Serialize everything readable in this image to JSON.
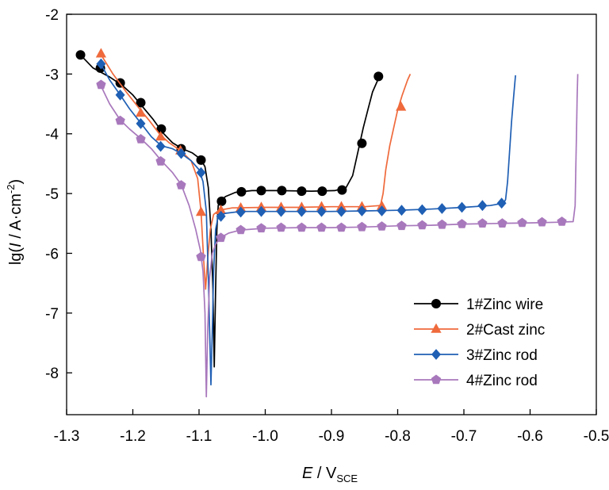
{
  "chart_data": {
    "type": "line",
    "xlabel_main": "E",
    "xlabel_unit": "V",
    "xlabel_sub": "SCE",
    "ylabel_main": "I",
    "ylabel_unit": "A·cm",
    "ylabel_sup": "-2",
    "xlim": [
      -1.3,
      -0.5
    ],
    "ylim": [
      -8.7,
      -2
    ],
    "x_ticks": [
      -1.3,
      -1.2,
      -1.1,
      -1.0,
      -0.9,
      -0.8,
      -0.7,
      -0.6,
      -0.5
    ],
    "x_tick_labels": [
      "-1.3",
      "-1.2",
      "-1.1",
      "-1.0",
      "-0.9",
      "-0.8",
      "-0.7",
      "-0.6",
      "-0.5"
    ],
    "y_ticks": [
      -2,
      -3,
      -4,
      -5,
      -6,
      -7,
      -8
    ],
    "y_tick_labels": [
      "-2",
      "-3",
      "-4",
      "-5",
      "-6",
      "-7",
      "-8"
    ],
    "grid": false,
    "legend_position": "bottom-right",
    "series": [
      {
        "name": "1#Zinc wire",
        "color": "#000000",
        "marker": "circle",
        "curve": [
          [
            -1.279,
            -2.68
          ],
          [
            -1.26,
            -2.9
          ],
          [
            -1.235,
            -3.05
          ],
          [
            -1.215,
            -3.2
          ],
          [
            -1.2,
            -3.35
          ],
          [
            -1.185,
            -3.55
          ],
          [
            -1.17,
            -3.75
          ],
          [
            -1.155,
            -3.98
          ],
          [
            -1.14,
            -4.15
          ],
          [
            -1.125,
            -4.25
          ],
          [
            -1.11,
            -4.32
          ],
          [
            -1.098,
            -4.42
          ],
          [
            -1.091,
            -4.55
          ],
          [
            -1.086,
            -4.9
          ],
          [
            -1.082,
            -5.6
          ],
          [
            -1.079,
            -6.6
          ],
          [
            -1.077,
            -7.9
          ],
          [
            -1.075,
            -6.6
          ],
          [
            -1.073,
            -5.6
          ],
          [
            -1.071,
            -5.2
          ],
          [
            -1.068,
            -5.12
          ],
          [
            -1.06,
            -5.05
          ],
          [
            -1.045,
            -4.98
          ],
          [
            -1.02,
            -4.95
          ],
          [
            -0.98,
            -4.95
          ],
          [
            -0.93,
            -4.96
          ],
          [
            -0.895,
            -4.95
          ],
          [
            -0.878,
            -4.9
          ],
          [
            -0.868,
            -4.7
          ],
          [
            -0.86,
            -4.3
          ],
          [
            -0.852,
            -3.9
          ],
          [
            -0.845,
            -3.6
          ],
          [
            -0.838,
            -3.3
          ],
          [
            -0.828,
            -3.05
          ]
        ],
        "markers": [
          [
            -1.279,
            -2.68
          ],
          [
            -1.249,
            -2.9
          ],
          [
            -1.219,
            -3.15
          ],
          [
            -1.188,
            -3.48
          ],
          [
            -1.157,
            -3.92
          ],
          [
            -1.127,
            -4.25
          ],
          [
            -1.097,
            -4.44
          ],
          [
            -1.066,
            -5.13
          ],
          [
            -1.036,
            -4.97
          ],
          [
            -1.006,
            -4.95
          ],
          [
            -0.975,
            -4.95
          ],
          [
            -0.945,
            -4.96
          ],
          [
            -0.914,
            -4.96
          ],
          [
            -0.884,
            -4.94
          ],
          [
            -0.854,
            -4.16
          ],
          [
            -0.829,
            -3.04
          ]
        ]
      },
      {
        "name": "2#Cast zinc",
        "color": "#ef6a3c",
        "marker": "triangle",
        "curve": [
          [
            -1.249,
            -2.66
          ],
          [
            -1.23,
            -3.0
          ],
          [
            -1.21,
            -3.3
          ],
          [
            -1.19,
            -3.58
          ],
          [
            -1.175,
            -3.78
          ],
          [
            -1.16,
            -4.0
          ],
          [
            -1.145,
            -4.15
          ],
          [
            -1.128,
            -4.28
          ],
          [
            -1.112,
            -4.45
          ],
          [
            -1.102,
            -4.75
          ],
          [
            -1.097,
            -5.3
          ],
          [
            -1.093,
            -6.1
          ],
          [
            -1.09,
            -6.6
          ],
          [
            -1.087,
            -6.1
          ],
          [
            -1.083,
            -5.6
          ],
          [
            -1.078,
            -5.35
          ],
          [
            -1.07,
            -5.28
          ],
          [
            -1.05,
            -5.24
          ],
          [
            -1.0,
            -5.23
          ],
          [
            -0.95,
            -5.23
          ],
          [
            -0.9,
            -5.22
          ],
          [
            -0.85,
            -5.22
          ],
          [
            -0.826,
            -5.2
          ],
          [
            -0.822,
            -5.0
          ],
          [
            -0.818,
            -4.6
          ],
          [
            -0.812,
            -4.2
          ],
          [
            -0.806,
            -3.9
          ],
          [
            -0.8,
            -3.6
          ],
          [
            -0.793,
            -3.35
          ],
          [
            -0.785,
            -3.1
          ],
          [
            -0.781,
            -3.0
          ]
        ],
        "markers": [
          [
            -1.248,
            -2.66
          ],
          [
            -1.188,
            -3.65
          ],
          [
            -1.158,
            -4.05
          ],
          [
            -1.128,
            -4.28
          ],
          [
            -1.097,
            -5.31
          ],
          [
            -1.067,
            -5.28
          ],
          [
            -1.037,
            -5.24
          ],
          [
            -1.006,
            -5.23
          ],
          [
            -0.976,
            -5.23
          ],
          [
            -0.945,
            -5.23
          ],
          [
            -0.915,
            -5.22
          ],
          [
            -0.885,
            -5.22
          ],
          [
            -0.854,
            -5.22
          ],
          [
            -0.824,
            -5.21
          ],
          [
            -0.795,
            -3.55
          ]
        ]
      },
      {
        "name": "3#Zinc rod",
        "color": "#1f5fb4",
        "marker": "diamond",
        "curve": [
          [
            -1.249,
            -2.82
          ],
          [
            -1.235,
            -3.1
          ],
          [
            -1.219,
            -3.35
          ],
          [
            -1.205,
            -3.58
          ],
          [
            -1.188,
            -3.82
          ],
          [
            -1.172,
            -4.05
          ],
          [
            -1.157,
            -4.2
          ],
          [
            -1.14,
            -4.25
          ],
          [
            -1.127,
            -4.33
          ],
          [
            -1.112,
            -4.45
          ],
          [
            -1.1,
            -4.6
          ],
          [
            -1.094,
            -4.8
          ],
          [
            -1.089,
            -5.3
          ],
          [
            -1.086,
            -6.4
          ],
          [
            -1.084,
            -7.3
          ],
          [
            -1.082,
            -8.2
          ],
          [
            -1.08,
            -7.3
          ],
          [
            -1.078,
            -6.3
          ],
          [
            -1.075,
            -5.6
          ],
          [
            -1.071,
            -5.38
          ],
          [
            -1.06,
            -5.33
          ],
          [
            -1.037,
            -5.3
          ],
          [
            -1.0,
            -5.3
          ],
          [
            -0.95,
            -5.3
          ],
          [
            -0.9,
            -5.3
          ],
          [
            -0.85,
            -5.29
          ],
          [
            -0.8,
            -5.28
          ],
          [
            -0.75,
            -5.26
          ],
          [
            -0.7,
            -5.23
          ],
          [
            -0.66,
            -5.2
          ],
          [
            -0.64,
            -5.16
          ],
          [
            -0.637,
            -5.1
          ],
          [
            -0.634,
            -4.8
          ],
          [
            -0.631,
            -4.3
          ],
          [
            -0.628,
            -3.8
          ],
          [
            -0.625,
            -3.4
          ],
          [
            -0.622,
            -3.02
          ]
        ],
        "markers": [
          [
            -1.248,
            -2.83
          ],
          [
            -1.219,
            -3.35
          ],
          [
            -1.188,
            -3.83
          ],
          [
            -1.158,
            -4.21
          ],
          [
            -1.127,
            -4.33
          ],
          [
            -1.097,
            -4.65
          ],
          [
            -1.067,
            -5.38
          ],
          [
            -1.037,
            -5.31
          ],
          [
            -1.006,
            -5.3
          ],
          [
            -0.976,
            -5.3
          ],
          [
            -0.945,
            -5.3
          ],
          [
            -0.915,
            -5.3
          ],
          [
            -0.885,
            -5.3
          ],
          [
            -0.854,
            -5.29
          ],
          [
            -0.824,
            -5.29
          ],
          [
            -0.794,
            -5.28
          ],
          [
            -0.763,
            -5.27
          ],
          [
            -0.733,
            -5.25
          ],
          [
            -0.703,
            -5.23
          ],
          [
            -0.672,
            -5.2
          ],
          [
            -0.643,
            -5.16
          ]
        ]
      },
      {
        "name": "4#Zinc rod",
        "color": "#a878bc",
        "marker": "pentagon",
        "curve": [
          [
            -1.249,
            -3.18
          ],
          [
            -1.235,
            -3.5
          ],
          [
            -1.219,
            -3.77
          ],
          [
            -1.205,
            -3.92
          ],
          [
            -1.188,
            -4.08
          ],
          [
            -1.172,
            -4.25
          ],
          [
            -1.157,
            -4.45
          ],
          [
            -1.14,
            -4.65
          ],
          [
            -1.127,
            -4.85
          ],
          [
            -1.115,
            -5.2
          ],
          [
            -1.105,
            -5.6
          ],
          [
            -1.098,
            -5.95
          ],
          [
            -1.094,
            -6.3
          ],
          [
            -1.091,
            -7.0
          ],
          [
            -1.089,
            -8.4
          ],
          [
            -1.087,
            -7.3
          ],
          [
            -1.084,
            -6.4
          ],
          [
            -1.08,
            -6.0
          ],
          [
            -1.075,
            -5.85
          ],
          [
            -1.068,
            -5.74
          ],
          [
            -1.055,
            -5.66
          ],
          [
            -1.037,
            -5.61
          ],
          [
            -1.0,
            -5.58
          ],
          [
            -0.95,
            -5.57
          ],
          [
            -0.9,
            -5.57
          ],
          [
            -0.85,
            -5.56
          ],
          [
            -0.8,
            -5.54
          ],
          [
            -0.75,
            -5.53
          ],
          [
            -0.7,
            -5.51
          ],
          [
            -0.65,
            -5.5
          ],
          [
            -0.6,
            -5.49
          ],
          [
            -0.56,
            -5.48
          ],
          [
            -0.535,
            -5.47
          ],
          [
            -0.532,
            -5.2
          ],
          [
            -0.531,
            -4.6
          ],
          [
            -0.53,
            -4.0
          ],
          [
            -0.529,
            -3.4
          ],
          [
            -0.528,
            -3.0
          ]
        ],
        "markers": [
          [
            -1.248,
            -3.18
          ],
          [
            -1.219,
            -3.78
          ],
          [
            -1.188,
            -4.09
          ],
          [
            -1.158,
            -4.46
          ],
          [
            -1.127,
            -4.86
          ],
          [
            -1.097,
            -6.06
          ],
          [
            -1.067,
            -5.74
          ],
          [
            -1.037,
            -5.61
          ],
          [
            -1.006,
            -5.58
          ],
          [
            -0.976,
            -5.57
          ],
          [
            -0.945,
            -5.57
          ],
          [
            -0.915,
            -5.57
          ],
          [
            -0.885,
            -5.57
          ],
          [
            -0.854,
            -5.56
          ],
          [
            -0.824,
            -5.55
          ],
          [
            -0.794,
            -5.54
          ],
          [
            -0.763,
            -5.53
          ],
          [
            -0.733,
            -5.52
          ],
          [
            -0.703,
            -5.51
          ],
          [
            -0.672,
            -5.5
          ],
          [
            -0.642,
            -5.5
          ],
          [
            -0.612,
            -5.49
          ],
          [
            -0.582,
            -5.48
          ],
          [
            -0.552,
            -5.47
          ]
        ]
      }
    ]
  }
}
